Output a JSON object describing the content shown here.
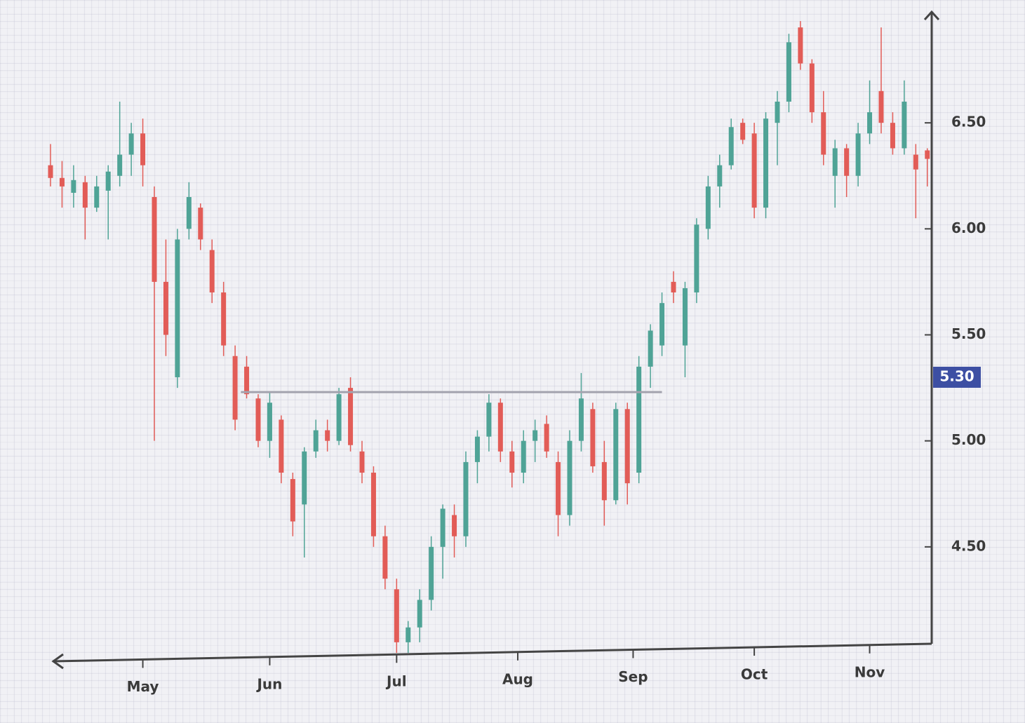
{
  "chart_data": {
    "type": "candlestick",
    "x": [
      0,
      2,
      4,
      6,
      8,
      10,
      12,
      14,
      16,
      18,
      20,
      22,
      24,
      26,
      28,
      30,
      32,
      34,
      36,
      38,
      40,
      42,
      44,
      46,
      48,
      50,
      52,
      54,
      56,
      58,
      60,
      62,
      64,
      66,
      68,
      70,
      72,
      74,
      76,
      78,
      80,
      82,
      84,
      86,
      88,
      90,
      92,
      94,
      96,
      98,
      100,
      102,
      104,
      106,
      108,
      110,
      112,
      114,
      116,
      118,
      120,
      122,
      124,
      126,
      128,
      130,
      132,
      134,
      136,
      138,
      140,
      142,
      144,
      146,
      148,
      150,
      152
    ],
    "open": [
      6.3,
      6.24,
      6.17,
      6.22,
      6.1,
      6.18,
      6.25,
      6.35,
      6.45,
      6.15,
      5.75,
      5.3,
      6.0,
      6.1,
      5.9,
      5.7,
      5.4,
      5.35,
      5.2,
      5.0,
      5.1,
      4.82,
      4.7,
      4.95,
      5.05,
      5.0,
      5.25,
      4.95,
      4.85,
      4.55,
      4.3,
      4.05,
      4.12,
      4.25,
      4.5,
      4.65,
      4.55,
      4.9,
      5.02,
      5.18,
      4.95,
      4.85,
      5.0,
      5.08,
      4.9,
      4.65,
      5.0,
      5.15,
      4.9,
      4.72,
      5.15,
      4.85,
      5.35,
      5.45,
      5.75,
      5.45,
      5.7,
      6.0,
      6.2,
      6.3,
      6.5,
      6.45,
      6.1,
      6.5,
      6.6,
      6.95,
      6.78,
      6.55,
      6.25,
      6.38,
      6.25,
      6.45,
      6.65,
      6.5,
      6.38,
      6.35,
      6.37
    ],
    "high": [
      6.4,
      6.32,
      6.3,
      6.25,
      6.25,
      6.3,
      6.6,
      6.5,
      6.52,
      6.2,
      5.95,
      6.0,
      6.22,
      6.12,
      5.95,
      5.75,
      5.45,
      5.4,
      5.22,
      5.23,
      5.12,
      4.85,
      4.97,
      5.1,
      5.1,
      5.25,
      5.3,
      5.0,
      4.88,
      4.6,
      4.35,
      4.15,
      4.3,
      4.55,
      4.7,
      4.7,
      4.95,
      5.05,
      5.22,
      5.2,
      5.0,
      5.05,
      5.1,
      5.12,
      4.95,
      5.05,
      5.32,
      5.18,
      5.0,
      5.18,
      5.18,
      5.4,
      5.55,
      5.7,
      5.8,
      5.75,
      6.05,
      6.25,
      6.35,
      6.52,
      6.52,
      6.5,
      6.55,
      6.65,
      6.92,
      6.98,
      6.8,
      6.65,
      6.42,
      6.4,
      6.5,
      6.7,
      6.95,
      6.55,
      6.7,
      6.4,
      6.38
    ],
    "low": [
      6.2,
      6.1,
      6.1,
      5.95,
      6.08,
      5.95,
      6.2,
      6.25,
      6.2,
      5.0,
      5.4,
      5.25,
      5.95,
      5.9,
      5.65,
      5.4,
      5.05,
      5.2,
      4.97,
      4.92,
      4.8,
      4.55,
      4.45,
      4.92,
      4.95,
      4.98,
      4.95,
      4.8,
      4.5,
      4.3,
      4.0,
      4.0,
      4.05,
      4.2,
      4.35,
      4.45,
      4.5,
      4.8,
      4.95,
      4.9,
      4.78,
      4.8,
      4.9,
      4.92,
      4.55,
      4.6,
      4.95,
      4.85,
      4.6,
      4.7,
      4.7,
      4.8,
      5.25,
      5.4,
      5.65,
      5.3,
      5.65,
      5.95,
      6.1,
      6.28,
      6.4,
      6.05,
      6.05,
      6.3,
      6.55,
      6.75,
      6.5,
      6.3,
      6.1,
      6.15,
      6.2,
      6.4,
      6.45,
      6.35,
      6.35,
      6.05,
      6.2
    ],
    "close": [
      6.24,
      6.2,
      6.23,
      6.1,
      6.2,
      6.27,
      6.35,
      6.45,
      6.3,
      5.75,
      5.5,
      5.95,
      6.15,
      5.95,
      5.7,
      5.45,
      5.1,
      5.22,
      5.0,
      5.18,
      4.85,
      4.62,
      4.95,
      5.05,
      5.0,
      5.22,
      4.98,
      4.85,
      4.55,
      4.35,
      4.05,
      4.12,
      4.25,
      4.5,
      4.68,
      4.55,
      4.9,
      5.02,
      5.18,
      4.95,
      4.85,
      5.0,
      5.05,
      4.95,
      4.65,
      5.0,
      5.2,
      4.88,
      4.72,
      5.15,
      4.8,
      5.35,
      5.52,
      5.65,
      5.7,
      5.72,
      6.02,
      6.2,
      6.3,
      6.48,
      6.42,
      6.1,
      6.52,
      6.6,
      6.88,
      6.78,
      6.55,
      6.35,
      6.38,
      6.25,
      6.45,
      6.55,
      6.5,
      6.38,
      6.6,
      6.28,
      6.33
    ],
    "up_color": "#4fa396",
    "down_color": "#e25c57",
    "xlim": [
      0,
      153
    ],
    "xticks": [
      {
        "value": 16,
        "label": "May"
      },
      {
        "value": 38,
        "label": "Jun"
      },
      {
        "value": 60,
        "label": "Jul"
      },
      {
        "value": 81,
        "label": "Aug"
      },
      {
        "value": 101,
        "label": "Sep"
      },
      {
        "value": 122,
        "label": "Oct"
      },
      {
        "value": 142,
        "label": "Nov"
      }
    ],
    "ylim": [
      4.0,
      7.0
    ],
    "yticks": [
      {
        "value": 4.5,
        "label": "4.50"
      },
      {
        "value": 5.0,
        "label": "5.00"
      },
      {
        "value": 5.5,
        "label": "5.50"
      },
      {
        "value": 6.0,
        "label": "6.00"
      },
      {
        "value": 6.5,
        "label": "6.50"
      }
    ],
    "reference_line": {
      "value": 5.23,
      "xrange": [
        33,
        106
      ],
      "color": "#a3a3ae"
    },
    "price_marker": {
      "value": 5.3,
      "label": "5.30",
      "color": "#3d4fa3"
    }
  }
}
